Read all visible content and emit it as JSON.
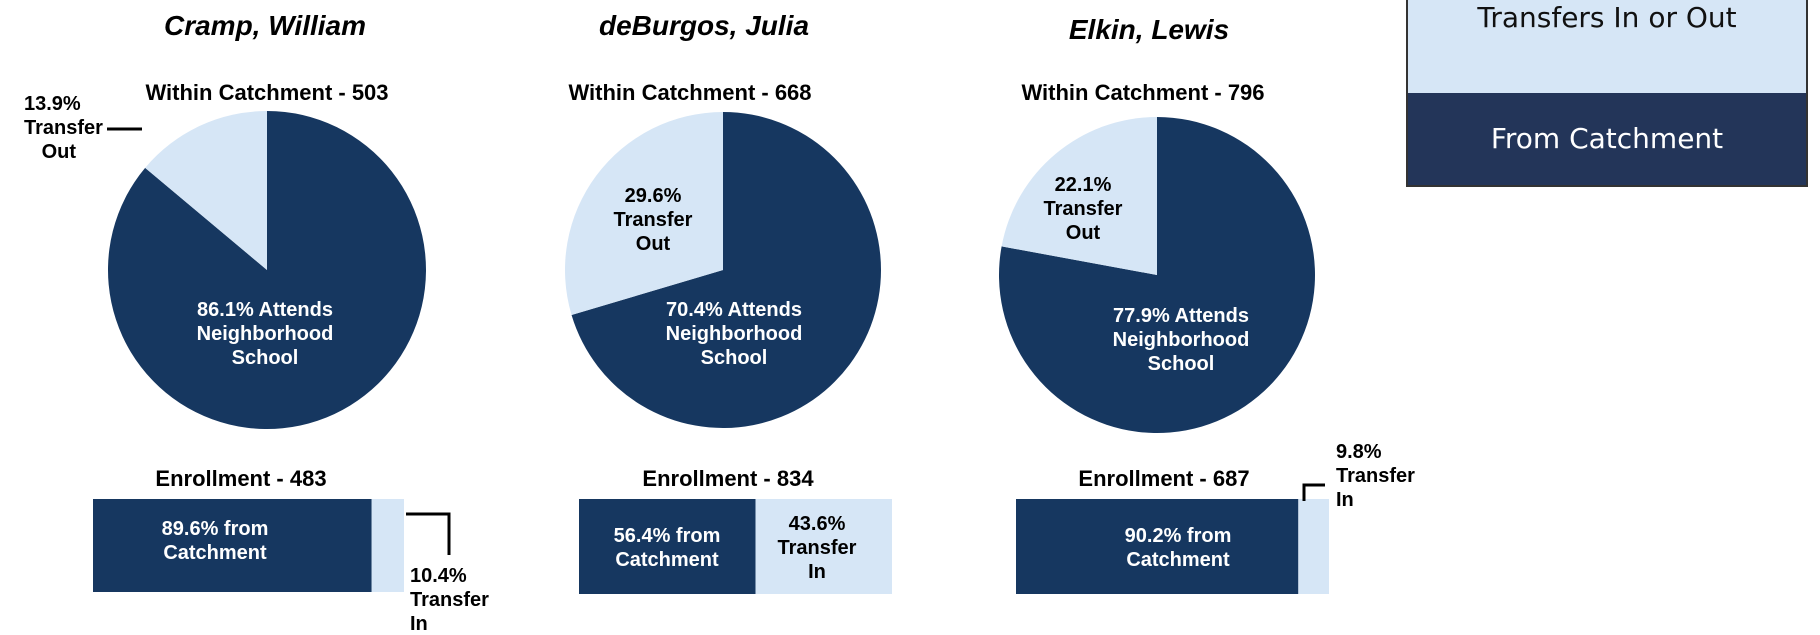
{
  "legend": {
    "items": [
      {
        "label": "Transfers In or Out",
        "color": "#d6e6f6"
      },
      {
        "label": "From Catchment",
        "color": "#233559"
      }
    ]
  },
  "chart_data": [
    {
      "type": "pie",
      "title": "Cramp, William",
      "subtitle": "Within Catchment - 503",
      "values": [
        86.1,
        13.9
      ],
      "value_labels": [
        "86.1% Attends Neighborhood School",
        "13.9% Transfer Out"
      ],
      "colors": [
        "#163760",
        "#d6e6f6"
      ]
    },
    {
      "type": "stackedbar",
      "title": "Enrollment - 483",
      "values": [
        89.6,
        10.4
      ],
      "value_labels": [
        "89.6% from Catchment",
        "10.4% Transfer In"
      ],
      "colors": [
        "#163760",
        "#d6e6f6"
      ]
    },
    {
      "type": "pie",
      "title": "deBurgos, Julia",
      "subtitle": "Within Catchment - 668",
      "values": [
        70.4,
        29.6
      ],
      "value_labels": [
        "70.4% Attends Neighborhood School",
        "29.6% Transfer Out"
      ],
      "colors": [
        "#163760",
        "#d6e6f6"
      ]
    },
    {
      "type": "stackedbar",
      "title": "Enrollment - 834",
      "values": [
        56.4,
        43.6
      ],
      "value_labels": [
        "56.4% from Catchment",
        "43.6% Transfer In"
      ],
      "colors": [
        "#163760",
        "#d6e6f6"
      ]
    },
    {
      "type": "pie",
      "title": "Elkin, Lewis",
      "subtitle": "Within Catchment - 796",
      "values": [
        77.9,
        22.1
      ],
      "value_labels": [
        "77.9% Attends Neighborhood School",
        "22.1% Transfer Out"
      ],
      "colors": [
        "#163760",
        "#d6e6f6"
      ]
    },
    {
      "type": "stackedbar",
      "title": "Enrollment - 687",
      "values": [
        90.2,
        9.8
      ],
      "value_labels": [
        "90.2% from Catchment",
        "9.8% Transfer In"
      ],
      "colors": [
        "#163760",
        "#d6e6f6"
      ]
    }
  ]
}
